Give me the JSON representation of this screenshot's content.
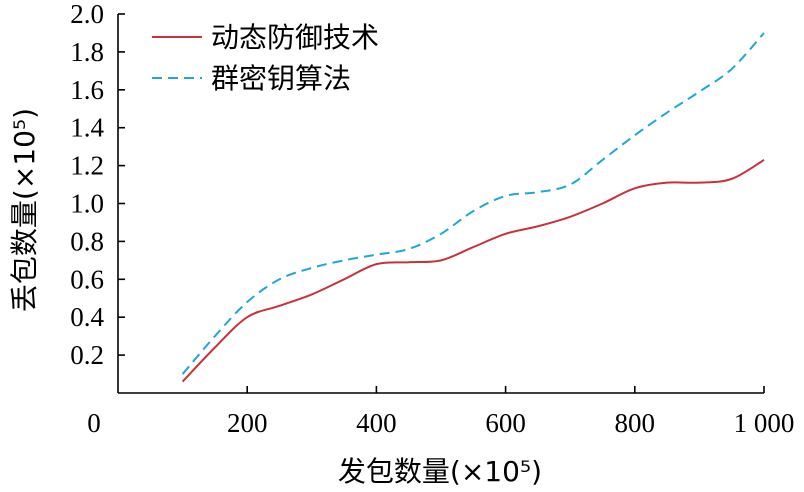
{
  "chart_data": {
    "type": "line",
    "title": "",
    "xlabel": "发包数量(×10⁵)",
    "ylabel": "丢包数量(×10⁵)",
    "xlim": [
      0,
      1000
    ],
    "ylim": [
      0,
      2.0
    ],
    "x_ticks": [
      {
        "value": 0,
        "label": "0"
      },
      {
        "value": 200,
        "label": "200"
      },
      {
        "value": 400,
        "label": "400"
      },
      {
        "value": 600,
        "label": "600"
      },
      {
        "value": 800,
        "label": "800"
      },
      {
        "value": 1000,
        "label": "1 000"
      }
    ],
    "y_ticks": [
      {
        "value": 0.2,
        "label": "0.2"
      },
      {
        "value": 0.4,
        "label": "0.4"
      },
      {
        "value": 0.6,
        "label": "0.6"
      },
      {
        "value": 0.8,
        "label": "0.8"
      },
      {
        "value": 1.0,
        "label": "1.0"
      },
      {
        "value": 1.2,
        "label": "1.2"
      },
      {
        "value": 1.4,
        "label": "1.4"
      },
      {
        "value": 1.6,
        "label": "1.6"
      },
      {
        "value": 1.8,
        "label": "1.8"
      },
      {
        "value": 2.0,
        "label": "2.0"
      }
    ],
    "legend_position": "top-left",
    "grid": false,
    "series": [
      {
        "name": "动态防御技术",
        "color": "#c8323c",
        "dash": "solid",
        "x": [
          100,
          150,
          200,
          250,
          300,
          350,
          400,
          450,
          500,
          550,
          600,
          650,
          700,
          750,
          800,
          850,
          900,
          950,
          1000
        ],
        "y": [
          0.06,
          0.24,
          0.4,
          0.46,
          0.52,
          0.6,
          0.68,
          0.69,
          0.7,
          0.77,
          0.84,
          0.88,
          0.93,
          1.0,
          1.08,
          1.11,
          1.11,
          1.13,
          1.23
        ]
      },
      {
        "name": "群密钥算法",
        "color": "#1ea8d2",
        "dash": "dashed",
        "x": [
          100,
          150,
          200,
          250,
          300,
          350,
          400,
          450,
          500,
          550,
          600,
          650,
          700,
          750,
          800,
          850,
          900,
          950,
          1000
        ],
        "y": [
          0.1,
          0.3,
          0.48,
          0.6,
          0.66,
          0.7,
          0.73,
          0.76,
          0.84,
          0.96,
          1.04,
          1.06,
          1.1,
          1.23,
          1.36,
          1.48,
          1.59,
          1.71,
          1.9
        ]
      }
    ]
  }
}
